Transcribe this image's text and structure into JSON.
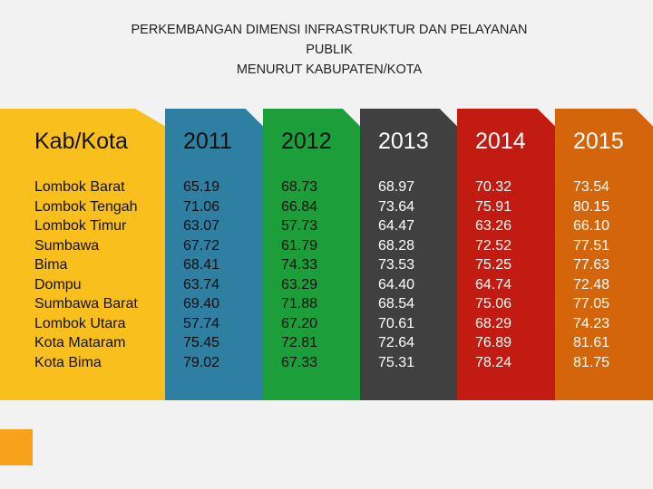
{
  "title_lines": [
    "PERKEMBANGAN DIMENSI INFRASTRUKTUR DAN PELAYANAN",
    "PUBLIK",
    "MENURUT KABUPATEN/KOTA"
  ],
  "chart_data": {
    "type": "table",
    "title": "PERKEMBANGAN DIMENSI INFRASTRUKTUR DAN PELAYANAN PUBLIK MENURUT KABUPATEN/KOTA",
    "label_header": "Kab/Kota",
    "categories": [
      "Lombok Barat",
      "Lombok Tengah",
      "Lombok Timur",
      "Sumbawa",
      "Bima",
      "Dompu",
      "Sumbawa Barat",
      "Lombok Utara",
      "Kota Mataram",
      "Kota Bima"
    ],
    "series": [
      {
        "name": "2011",
        "color": "#2f7fa3",
        "values": [
          "65.19",
          "71.06",
          "63.07",
          "67.72",
          "68.41",
          "63.74",
          "69.40",
          "57.74",
          "75.45",
          "79.02"
        ]
      },
      {
        "name": "2012",
        "color": "#1c9e3a",
        "values": [
          "68.73",
          "66.84",
          "57.73",
          "61.79",
          "74.33",
          "63.29",
          "71.88",
          "67.20",
          "72.81",
          "67.33"
        ]
      },
      {
        "name": "2013",
        "color": "#404040",
        "values": [
          "68.97",
          "73.64",
          "64.47",
          "68.28",
          "73.53",
          "64.40",
          "68.54",
          "70.61",
          "72.64",
          "75.31"
        ]
      },
      {
        "name": "2014",
        "color": "#c11b12",
        "values": [
          "70.32",
          "75.91",
          "63.26",
          "72.52",
          "75.25",
          "64.74",
          "75.06",
          "68.29",
          "76.89",
          "78.24"
        ]
      },
      {
        "name": "2015",
        "color": "#d4650a",
        "values": [
          "73.54",
          "80.15",
          "66.10",
          "77.51",
          "77.63",
          "72.48",
          "77.05",
          "74.23",
          "81.61",
          "81.75"
        ]
      }
    ]
  }
}
